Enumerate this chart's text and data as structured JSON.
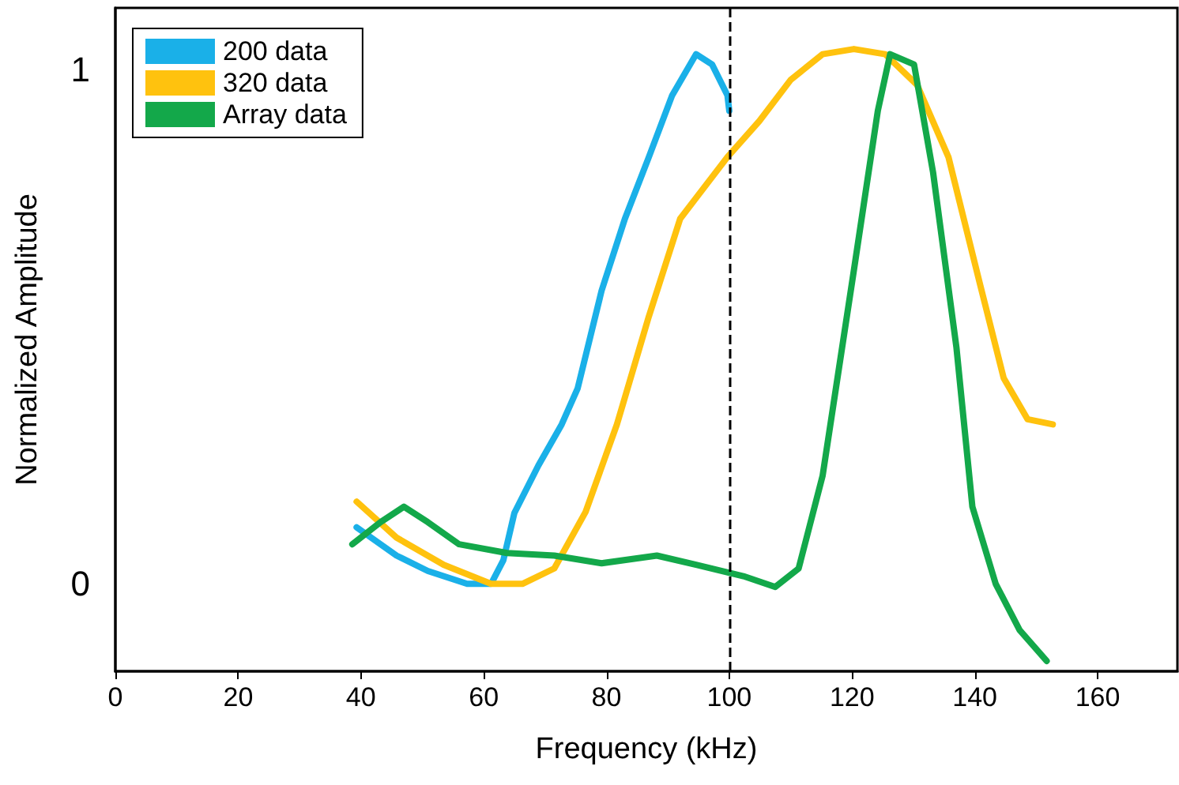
{
  "chart_data": {
    "type": "line",
    "xlabel": "Frequency (kHz)",
    "ylabel": "Normalized Amplitude",
    "xlim": [
      0,
      173
    ],
    "xticks": [
      0,
      20,
      40,
      60,
      80,
      100,
      120,
      140,
      160
    ],
    "ylim": [
      -0.17,
      1.12
    ],
    "yticks": [
      0,
      1
    ],
    "grid": false,
    "legend": "top left",
    "marker": "none",
    "line_style": "solid",
    "series": [
      {
        "name": "200 data",
        "color": "#1ab0e8",
        "x": [
          39.3,
          45.8,
          50.9,
          57.3,
          61.2,
          63.2,
          65,
          68.9,
          72.7,
          75.3,
          79.2,
          83,
          86.9,
          90.7,
          94.6,
          97.2,
          99.7,
          100
        ],
        "values": [
          0.11,
          0.055,
          0.025,
          0,
          0,
          0.046,
          0.138,
          0.23,
          0.31,
          0.38,
          0.57,
          0.71,
          0.83,
          0.95,
          1.03,
          1.01,
          0.95,
          0.92
        ]
      },
      {
        "name": "320 data",
        "color": "#ffc20e",
        "x": [
          39.3,
          45.8,
          53.5,
          61.2,
          66.3,
          71.5,
          76.6,
          81.7,
          86.9,
          92,
          99.7,
          104.9,
          110,
          115.2,
          120.3,
          125.4,
          130.6,
          135.7,
          140.9,
          144.7,
          148.6,
          152.7
        ],
        "values": [
          0.16,
          0.09,
          0.037,
          0,
          0,
          0.03,
          0.14,
          0.31,
          0.52,
          0.71,
          0.83,
          0.9,
          0.98,
          1.03,
          1.04,
          1.03,
          0.97,
          0.83,
          0.58,
          0.4,
          0.32,
          0.31
        ]
      },
      {
        "name": "Array data",
        "color": "#13a84a",
        "x": [
          38.6,
          43.2,
          47,
          50.9,
          56,
          63.8,
          71.5,
          79.2,
          88.2,
          94.6,
          102.3,
          107.5,
          111.3,
          115.2,
          120.3,
          124.2,
          126.2,
          130.1,
          133.2,
          137,
          139.6,
          143.4,
          147.3,
          151.7
        ],
        "values": [
          0.077,
          0.12,
          0.15,
          0.12,
          0.077,
          0.06,
          0.055,
          0.04,
          0.055,
          0.037,
          0.015,
          -0.006,
          0.03,
          0.21,
          0.61,
          0.92,
          1.03,
          1.01,
          0.8,
          0.46,
          0.15,
          0,
          -0.09,
          -0.15
        ]
      }
    ],
    "ref_lines": [
      {
        "axis": "x",
        "value": 100,
        "color": "#000000",
        "line_style": "dashed"
      }
    ]
  }
}
